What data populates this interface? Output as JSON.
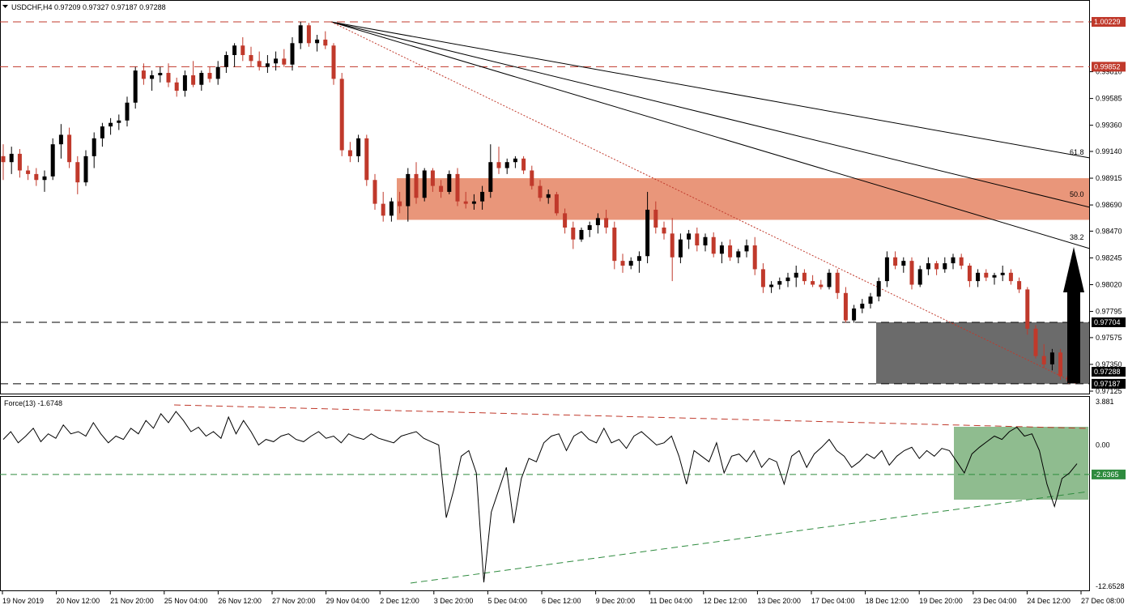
{
  "header": {
    "symbol_line": "USDCHF,H4  0.97209 0.97327 0.97187 0.97288",
    "indicator_line": "Force(13) -1.6748"
  },
  "colors": {
    "bull": "#000000",
    "bear": "#c0392b",
    "resistance_zone": "#e9967a",
    "support_zone": "#6b6b6b",
    "indicator_zone": "#8fbc8f",
    "tag_red": "#c0392b",
    "tag_black": "#000000",
    "tag_green": "#2e8b3e"
  },
  "price_axis": {
    "ticks": [
      "1.00229",
      "0.99810",
      "0.99585",
      "0.99360",
      "0.99140",
      "0.98915",
      "0.98690",
      "0.98470",
      "0.98245",
      "0.98020",
      "0.97795",
      "0.97575",
      "0.97350",
      "0.97125"
    ],
    "tags": [
      {
        "value": "1.00229",
        "style": "red"
      },
      {
        "value": "0.99852",
        "style": "red"
      },
      {
        "value": "0.97704",
        "style": "black"
      },
      {
        "value": "0.97288",
        "style": "black"
      },
      {
        "value": "0.97187",
        "style": "black"
      }
    ]
  },
  "force_axis": {
    "ticks": [
      "3.881",
      "0.00",
      "-12.6528"
    ],
    "tag": "-2.6365"
  },
  "time_axis": {
    "labels": [
      "19 Nov 2019",
      "20 Nov 12:00",
      "21 Nov 20:00",
      "25 Nov 04:00",
      "26 Nov 12:00",
      "27 Nov 20:00",
      "29 Nov 04:00",
      "2 Dec 12:00",
      "3 Dec 20:00",
      "5 Dec 04:00",
      "6 Dec 12:00",
      "9 Dec 20:00",
      "11 Dec 04:00",
      "12 Dec 12:00",
      "13 Dec 20:00",
      "17 Dec 04:00",
      "18 Dec 12:00",
      "19 Dec 20:00",
      "23 Dec 04:00",
      "24 Dec 12:00",
      "27 Dec 08:00"
    ]
  },
  "fib_labels": [
    "61.8",
    "50.0",
    "38.2"
  ],
  "chart_data": {
    "type": "candlestick",
    "symbol": "USDCHF",
    "timeframe": "H4",
    "ylim": [
      0.97125,
      1.00229
    ],
    "levels": [
      1.00229,
      0.99852,
      0.97704,
      0.97187
    ],
    "resistance_zone": [
      0.98565,
      0.98915
    ],
    "support_zone": [
      0.97187,
      0.97704
    ],
    "candles": [
      {
        "o": 0.991,
        "h": 0.992,
        "l": 0.989,
        "c": 0.9905
      },
      {
        "o": 0.9905,
        "h": 0.9918,
        "l": 0.9895,
        "c": 0.9912
      },
      {
        "o": 0.9912,
        "h": 0.9916,
        "l": 0.9892,
        "c": 0.9898
      },
      {
        "o": 0.9898,
        "h": 0.9902,
        "l": 0.989,
        "c": 0.9895
      },
      {
        "o": 0.9895,
        "h": 0.99,
        "l": 0.9885,
        "c": 0.989
      },
      {
        "o": 0.989,
        "h": 0.9898,
        "l": 0.988,
        "c": 0.9893
      },
      {
        "o": 0.9893,
        "h": 0.9925,
        "l": 0.989,
        "c": 0.992
      },
      {
        "o": 0.992,
        "h": 0.9937,
        "l": 0.9908,
        "c": 0.9928
      },
      {
        "o": 0.9928,
        "h": 0.9934,
        "l": 0.99,
        "c": 0.9905
      },
      {
        "o": 0.9905,
        "h": 0.991,
        "l": 0.9878,
        "c": 0.9888
      },
      {
        "o": 0.9888,
        "h": 0.9915,
        "l": 0.9885,
        "c": 0.991
      },
      {
        "o": 0.991,
        "h": 0.993,
        "l": 0.99,
        "c": 0.9925
      },
      {
        "o": 0.9925,
        "h": 0.9938,
        "l": 0.9918,
        "c": 0.9935
      },
      {
        "o": 0.9935,
        "h": 0.9942,
        "l": 0.9928,
        "c": 0.9938
      },
      {
        "o": 0.9938,
        "h": 0.9945,
        "l": 0.9932,
        "c": 0.994
      },
      {
        "o": 0.994,
        "h": 0.996,
        "l": 0.9935,
        "c": 0.9955
      },
      {
        "o": 0.9955,
        "h": 0.9985,
        "l": 0.995,
        "c": 0.9982
      },
      {
        "o": 0.9982,
        "h": 0.9988,
        "l": 0.997,
        "c": 0.9975
      },
      {
        "o": 0.9975,
        "h": 0.9982,
        "l": 0.9965,
        "c": 0.9978
      },
      {
        "o": 0.9978,
        "h": 0.9985,
        "l": 0.9972,
        "c": 0.998
      },
      {
        "o": 0.998,
        "h": 0.9988,
        "l": 0.9968,
        "c": 0.9972
      },
      {
        "o": 0.9972,
        "h": 0.9976,
        "l": 0.996,
        "c": 0.9965
      },
      {
        "o": 0.9965,
        "h": 0.9982,
        "l": 0.996,
        "c": 0.9978
      },
      {
        "o": 0.9978,
        "h": 0.999,
        "l": 0.9968,
        "c": 0.997
      },
      {
        "o": 0.997,
        "h": 0.9982,
        "l": 0.9965,
        "c": 0.998
      },
      {
        "o": 0.998,
        "h": 0.9985,
        "l": 0.9972,
        "c": 0.9975
      },
      {
        "o": 0.9975,
        "h": 0.999,
        "l": 0.997,
        "c": 0.9985
      },
      {
        "o": 0.9985,
        "h": 0.9998,
        "l": 0.998,
        "c": 0.9995
      },
      {
        "o": 0.9995,
        "h": 1.0005,
        "l": 0.9985,
        "c": 1.0003
      },
      {
        "o": 1.0003,
        "h": 1.001,
        "l": 0.999,
        "c": 0.9995
      },
      {
        "o": 0.9995,
        "h": 1.0002,
        "l": 0.9985,
        "c": 0.999
      },
      {
        "o": 0.999,
        "h": 0.9998,
        "l": 0.9982,
        "c": 0.9985
      },
      {
        "o": 0.9985,
        "h": 0.9995,
        "l": 0.998,
        "c": 0.9988
      },
      {
        "o": 0.9988,
        "h": 0.9998,
        "l": 0.9982,
        "c": 0.9992
      },
      {
        "o": 0.9992,
        "h": 1.0,
        "l": 0.9985,
        "c": 0.9987
      },
      {
        "o": 0.9987,
        "h": 1.001,
        "l": 0.9982,
        "c": 1.0005
      },
      {
        "o": 1.0005,
        "h": 1.0023,
        "l": 1.0,
        "c": 1.002
      },
      {
        "o": 1.002,
        "h": 1.0022,
        "l": 1.0002,
        "c": 1.0005
      },
      {
        "o": 1.0005,
        "h": 1.0012,
        "l": 0.9998,
        "c": 1.0008
      },
      {
        "o": 1.0008,
        "h": 1.0015,
        "l": 1.0,
        "c": 1.0003
      },
      {
        "o": 1.0003,
        "h": 1.0005,
        "l": 0.997,
        "c": 0.9975
      },
      {
        "o": 0.9975,
        "h": 0.998,
        "l": 0.991,
        "c": 0.9915
      },
      {
        "o": 0.9915,
        "h": 0.9922,
        "l": 0.9905,
        "c": 0.991
      },
      {
        "o": 0.991,
        "h": 0.9928,
        "l": 0.9905,
        "c": 0.9925
      },
      {
        "o": 0.9925,
        "h": 0.9928,
        "l": 0.9885,
        "c": 0.989
      },
      {
        "o": 0.989,
        "h": 0.9895,
        "l": 0.9865,
        "c": 0.987
      },
      {
        "o": 0.987,
        "h": 0.988,
        "l": 0.9855,
        "c": 0.986
      },
      {
        "o": 0.986,
        "h": 0.9875,
        "l": 0.9855,
        "c": 0.9872
      },
      {
        "o": 0.9872,
        "h": 0.988,
        "l": 0.9862,
        "c": 0.9868
      },
      {
        "o": 0.9868,
        "h": 0.99,
        "l": 0.9855,
        "c": 0.9895
      },
      {
        "o": 0.9895,
        "h": 0.9905,
        "l": 0.987,
        "c": 0.9875
      },
      {
        "o": 0.9875,
        "h": 0.99,
        "l": 0.9872,
        "c": 0.9898
      },
      {
        "o": 0.9898,
        "h": 0.99,
        "l": 0.988,
        "c": 0.9885
      },
      {
        "o": 0.9885,
        "h": 0.989,
        "l": 0.9875,
        "c": 0.988
      },
      {
        "o": 0.988,
        "h": 0.9898,
        "l": 0.9878,
        "c": 0.9895
      },
      {
        "o": 0.9895,
        "h": 0.99,
        "l": 0.9868,
        "c": 0.9872
      },
      {
        "o": 0.9872,
        "h": 0.988,
        "l": 0.9866,
        "c": 0.987
      },
      {
        "o": 0.987,
        "h": 0.9878,
        "l": 0.9865,
        "c": 0.9872
      },
      {
        "o": 0.9872,
        "h": 0.9885,
        "l": 0.9865,
        "c": 0.988
      },
      {
        "o": 0.988,
        "h": 0.992,
        "l": 0.9875,
        "c": 0.9905
      },
      {
        "o": 0.9905,
        "h": 0.9918,
        "l": 0.9895,
        "c": 0.99
      },
      {
        "o": 0.99,
        "h": 0.9908,
        "l": 0.9895,
        "c": 0.9905
      },
      {
        "o": 0.9905,
        "h": 0.991,
        "l": 0.99,
        "c": 0.9908
      },
      {
        "o": 0.9908,
        "h": 0.991,
        "l": 0.9895,
        "c": 0.9898
      },
      {
        "o": 0.9898,
        "h": 0.9902,
        "l": 0.9882,
        "c": 0.9885
      },
      {
        "o": 0.9885,
        "h": 0.989,
        "l": 0.9872,
        "c": 0.9875
      },
      {
        "o": 0.9875,
        "h": 0.9882,
        "l": 0.987,
        "c": 0.9878
      },
      {
        "o": 0.9878,
        "h": 0.988,
        "l": 0.986,
        "c": 0.9862
      },
      {
        "o": 0.9862,
        "h": 0.9866,
        "l": 0.9845,
        "c": 0.985
      },
      {
        "o": 0.985,
        "h": 0.9855,
        "l": 0.9832,
        "c": 0.984
      },
      {
        "o": 0.984,
        "h": 0.985,
        "l": 0.9838,
        "c": 0.9848
      },
      {
        "o": 0.9848,
        "h": 0.9855,
        "l": 0.9842,
        "c": 0.9852
      },
      {
        "o": 0.9852,
        "h": 0.9862,
        "l": 0.9845,
        "c": 0.9858
      },
      {
        "o": 0.9858,
        "h": 0.9865,
        "l": 0.9845,
        "c": 0.985
      },
      {
        "o": 0.985,
        "h": 0.9855,
        "l": 0.9815,
        "c": 0.9822
      },
      {
        "o": 0.9822,
        "h": 0.9828,
        "l": 0.9812,
        "c": 0.9818
      },
      {
        "o": 0.9818,
        "h": 0.9825,
        "l": 0.9815,
        "c": 0.9822
      },
      {
        "o": 0.9822,
        "h": 0.983,
        "l": 0.9812,
        "c": 0.9826
      },
      {
        "o": 0.9826,
        "h": 0.988,
        "l": 0.982,
        "c": 0.9865
      },
      {
        "o": 0.9865,
        "h": 0.9872,
        "l": 0.9845,
        "c": 0.985
      },
      {
        "o": 0.985,
        "h": 0.9855,
        "l": 0.984,
        "c": 0.9845
      },
      {
        "o": 0.9845,
        "h": 0.9858,
        "l": 0.9805,
        "c": 0.9825
      },
      {
        "o": 0.9825,
        "h": 0.9845,
        "l": 0.982,
        "c": 0.984
      },
      {
        "o": 0.984,
        "h": 0.9848,
        "l": 0.9832,
        "c": 0.9845
      },
      {
        "o": 0.9845,
        "h": 0.985,
        "l": 0.983,
        "c": 0.9835
      },
      {
        "o": 0.9835,
        "h": 0.9845,
        "l": 0.983,
        "c": 0.9842
      },
      {
        "o": 0.9842,
        "h": 0.9846,
        "l": 0.9825,
        "c": 0.9828
      },
      {
        "o": 0.9828,
        "h": 0.9838,
        "l": 0.982,
        "c": 0.9835
      },
      {
        "o": 0.9835,
        "h": 0.984,
        "l": 0.9822,
        "c": 0.9825
      },
      {
        "o": 0.9825,
        "h": 0.9832,
        "l": 0.982,
        "c": 0.983
      },
      {
        "o": 0.983,
        "h": 0.984,
        "l": 0.9825,
        "c": 0.9835
      },
      {
        "o": 0.9835,
        "h": 0.9842,
        "l": 0.981,
        "c": 0.9815
      },
      {
        "o": 0.9815,
        "h": 0.982,
        "l": 0.9795,
        "c": 0.98
      },
      {
        "o": 0.98,
        "h": 0.9805,
        "l": 0.9795,
        "c": 0.9802
      },
      {
        "o": 0.9802,
        "h": 0.9808,
        "l": 0.9798,
        "c": 0.9805
      },
      {
        "o": 0.9805,
        "h": 0.9812,
        "l": 0.98,
        "c": 0.9808
      },
      {
        "o": 0.9808,
        "h": 0.9818,
        "l": 0.98,
        "c": 0.9812
      },
      {
        "o": 0.9812,
        "h": 0.9815,
        "l": 0.9802,
        "c": 0.9805
      },
      {
        "o": 0.9805,
        "h": 0.981,
        "l": 0.98,
        "c": 0.9802
      },
      {
        "o": 0.9802,
        "h": 0.9806,
        "l": 0.9798,
        "c": 0.98
      },
      {
        "o": 0.98,
        "h": 0.9815,
        "l": 0.9798,
        "c": 0.9812
      },
      {
        "o": 0.9812,
        "h": 0.9815,
        "l": 0.979,
        "c": 0.9795
      },
      {
        "o": 0.9795,
        "h": 0.98,
        "l": 0.977,
        "c": 0.9772
      },
      {
        "o": 0.9772,
        "h": 0.9785,
        "l": 0.977,
        "c": 0.9782
      },
      {
        "o": 0.9782,
        "h": 0.979,
        "l": 0.9778,
        "c": 0.9786
      },
      {
        "o": 0.9786,
        "h": 0.9795,
        "l": 0.9782,
        "c": 0.9792
      },
      {
        "o": 0.9792,
        "h": 0.9808,
        "l": 0.9788,
        "c": 0.9805
      },
      {
        "o": 0.9805,
        "h": 0.983,
        "l": 0.98,
        "c": 0.9825
      },
      {
        "o": 0.9825,
        "h": 0.983,
        "l": 0.9815,
        "c": 0.9818
      },
      {
        "o": 0.9818,
        "h": 0.9825,
        "l": 0.9812,
        "c": 0.9822
      },
      {
        "o": 0.9822,
        "h": 0.9825,
        "l": 0.9798,
        "c": 0.9802
      },
      {
        "o": 0.9802,
        "h": 0.9818,
        "l": 0.98,
        "c": 0.9815
      },
      {
        "o": 0.9815,
        "h": 0.9825,
        "l": 0.981,
        "c": 0.982
      },
      {
        "o": 0.982,
        "h": 0.9822,
        "l": 0.981,
        "c": 0.9815
      },
      {
        "o": 0.9815,
        "h": 0.9825,
        "l": 0.9812,
        "c": 0.982
      },
      {
        "o": 0.982,
        "h": 0.9828,
        "l": 0.9815,
        "c": 0.9825
      },
      {
        "o": 0.9825,
        "h": 0.9828,
        "l": 0.9815,
        "c": 0.9818
      },
      {
        "o": 0.9818,
        "h": 0.982,
        "l": 0.98,
        "c": 0.9805
      },
      {
        "o": 0.9805,
        "h": 0.9815,
        "l": 0.98,
        "c": 0.9812
      },
      {
        "o": 0.9812,
        "h": 0.9815,
        "l": 0.9805,
        "c": 0.9808
      },
      {
        "o": 0.9808,
        "h": 0.9812,
        "l": 0.9802,
        "c": 0.981
      },
      {
        "o": 0.981,
        "h": 0.9818,
        "l": 0.9805,
        "c": 0.9812
      },
      {
        "o": 0.9812,
        "h": 0.9815,
        "l": 0.9802,
        "c": 0.9805
      },
      {
        "o": 0.9805,
        "h": 0.9808,
        "l": 0.9795,
        "c": 0.9798
      },
      {
        "o": 0.9798,
        "h": 0.98,
        "l": 0.976,
        "c": 0.9765
      },
      {
        "o": 0.9765,
        "h": 0.9768,
        "l": 0.974,
        "c": 0.9742
      },
      {
        "o": 0.9742,
        "h": 0.9752,
        "l": 0.9732,
        "c": 0.9735
      },
      {
        "o": 0.9735,
        "h": 0.9748,
        "l": 0.973,
        "c": 0.9745
      },
      {
        "o": 0.9745,
        "h": 0.9748,
        "l": 0.9722,
        "c": 0.9725
      },
      {
        "o": 0.9725,
        "h": 0.9728,
        "l": 0.97187,
        "c": 0.97209
      },
      {
        "o": 0.97209,
        "h": 0.97327,
        "l": 0.97187,
        "c": 0.97288
      }
    ],
    "force_index": {
      "name": "Force(13)",
      "ylim": [
        -12.6528,
        3.881
      ],
      "level": -2.6365,
      "values": [
        0.5,
        1.2,
        0.2,
        0.8,
        1.5,
        0.3,
        1.0,
        0.6,
        1.8,
        1.0,
        1.2,
        0.8,
        2.0,
        1.0,
        0.2,
        0.8,
        0.5,
        1.5,
        1.0,
        2.2,
        1.5,
        2.8,
        2.0,
        3.0,
        2.2,
        1.2,
        1.6,
        0.8,
        1.2,
        0.6,
        2.5,
        1.0,
        2.2,
        1.2,
        0.0,
        0.5,
        0.3,
        0.8,
        1.0,
        0.5,
        0.3,
        0.8,
        1.2,
        0.6,
        0.8,
        0.2,
        1.0,
        0.7,
        0.5,
        1.0,
        0.6,
        0.4,
        0.2,
        0.8,
        1.0,
        1.2,
        0.6,
        0.3,
        0.0,
        -6.5,
        -4.0,
        -1.0,
        -0.5,
        -2.5,
        -12.3,
        -6.0,
        -4.0,
        -2.0,
        -7.0,
        -3.0,
        -1.2,
        -1.5,
        0.2,
        0.8,
        1.0,
        -0.5,
        0.8,
        1.2,
        0.5,
        0.2,
        1.5,
        0.2,
        0.5,
        -0.3,
        0.8,
        1.2,
        0.6,
        0.0,
        0.2,
        0.8,
        -1.0,
        -3.5,
        -0.5,
        -1.0,
        -1.5,
        0.2,
        -2.5,
        -1.0,
        -0.8,
        -1.5,
        -0.5,
        -2.0,
        -1.2,
        -1.5,
        -3.5,
        -1.0,
        -0.5,
        -2.0,
        -0.8,
        -0.2,
        0.5,
        -0.5,
        -1.0,
        -2.0,
        -1.5,
        -0.8,
        -1.2,
        -0.5,
        -1.8,
        -1.0,
        -0.5,
        -0.2,
        -1.2,
        -0.5,
        -1.0,
        -0.3,
        -0.5,
        -1.5,
        -2.5,
        -0.8,
        -0.2,
        0.3,
        0.8,
        0.5,
        1.2,
        1.6,
        0.8,
        1.0,
        -0.5,
        -3.5,
        -5.5,
        -3.0,
        -2.5,
        -1.6748
      ]
    }
  }
}
